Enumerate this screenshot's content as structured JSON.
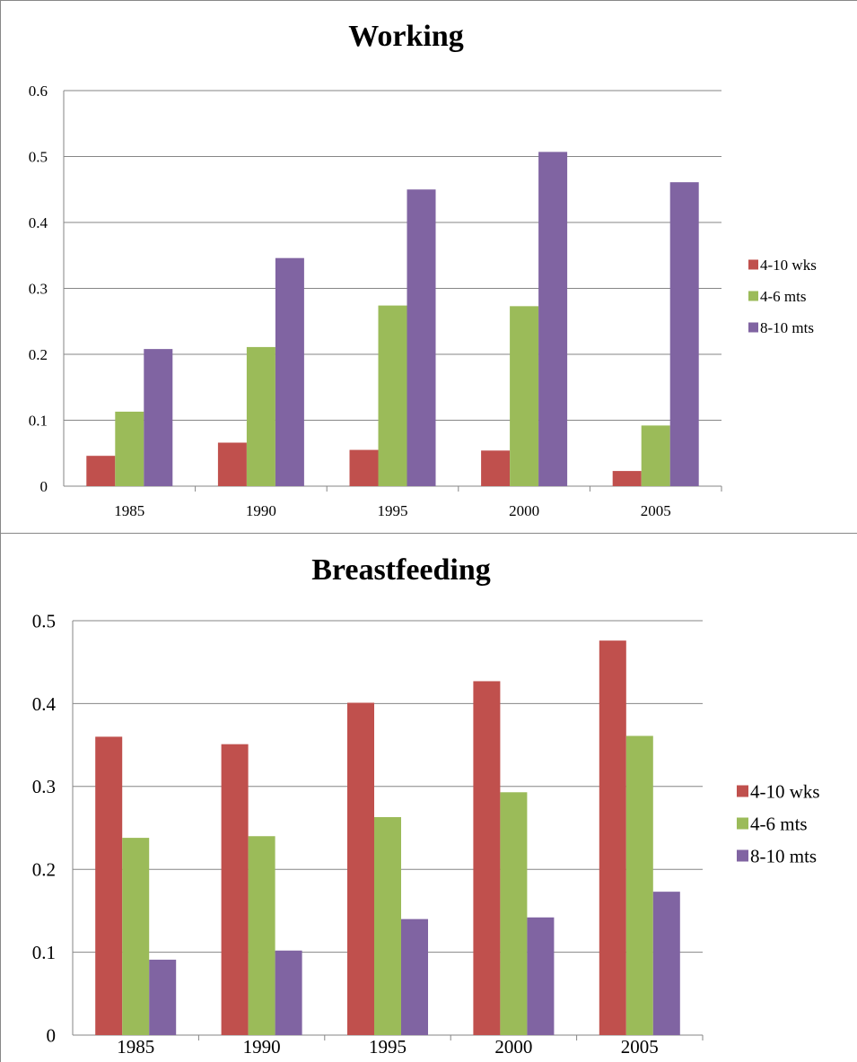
{
  "chart_data": [
    {
      "type": "bar",
      "title": "Working",
      "xlabel": "",
      "ylabel": "",
      "categories": [
        "1985",
        "1990",
        "1995",
        "2000",
        "2005"
      ],
      "series": [
        {
          "name": "4-10 wks",
          "color": "#C0504D",
          "values": [
            0.046,
            0.066,
            0.055,
            0.054,
            0.023
          ]
        },
        {
          "name": "4-6 mts",
          "color": "#9BBB59",
          "values": [
            0.113,
            0.211,
            0.274,
            0.273,
            0.092
          ]
        },
        {
          "name": "8-10 mts",
          "color": "#8064A2",
          "values": [
            0.208,
            0.346,
            0.45,
            0.507,
            0.461
          ]
        }
      ],
      "ylim": [
        0,
        0.6
      ],
      "yticks": [
        "0",
        "0.1",
        "0.2",
        "0.3",
        "0.4",
        "0.5",
        "0.6"
      ],
      "grid": true,
      "legend_position": "right"
    },
    {
      "type": "bar",
      "title": "Breastfeeding",
      "xlabel": "",
      "ylabel": "",
      "categories": [
        "1985",
        "1990",
        "1995",
        "2000",
        "2005"
      ],
      "series": [
        {
          "name": "4-10 wks",
          "color": "#C0504D",
          "values": [
            0.36,
            0.351,
            0.401,
            0.427,
            0.476
          ]
        },
        {
          "name": "4-6 mts",
          "color": "#9BBB59",
          "values": [
            0.238,
            0.24,
            0.263,
            0.293,
            0.361
          ]
        },
        {
          "name": "8-10 mts",
          "color": "#8064A2",
          "values": [
            0.091,
            0.102,
            0.14,
            0.142,
            0.173
          ]
        }
      ],
      "ylim": [
        0,
        0.5
      ],
      "yticks": [
        "0",
        "0.1",
        "0.2",
        "0.3",
        "0.4",
        "0.5"
      ],
      "grid": true,
      "legend_position": "right"
    }
  ]
}
